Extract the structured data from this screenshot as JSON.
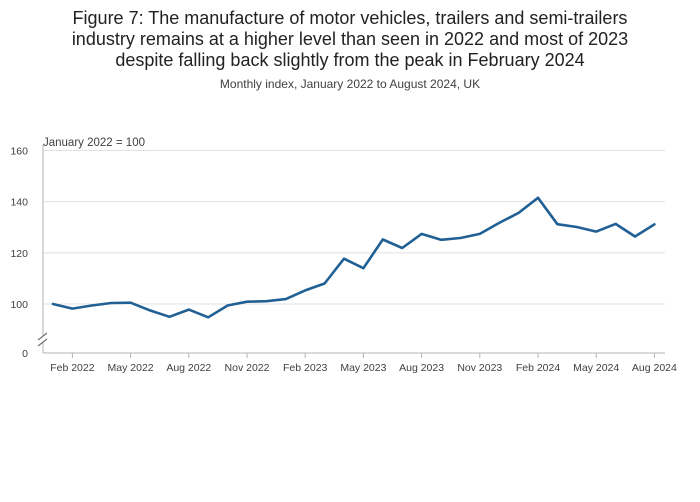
{
  "chart_data": {
    "type": "line",
    "title_lines": [
      "Figure 7: The manufacture of motor vehicles, trailers and semi-trailers",
      "industry remains at a higher level than seen in 2022 and most of 2023",
      "despite falling back slightly from the peak in February 2024"
    ],
    "subtitle": "Monthly index, January 2022 to August 2024, UK",
    "ylabel": "January 2022 = 100",
    "ylim": [
      0,
      160
    ],
    "axis_break": [
      0,
      100
    ],
    "yticks": [
      0,
      100,
      120,
      140,
      160
    ],
    "xtick_labels": [
      "Feb 2022",
      "May 2022",
      "Aug 2022",
      "Nov 2022",
      "Feb 2023",
      "May 2023",
      "Aug 2023",
      "Nov 2023",
      "Feb 2024",
      "May 2024",
      "Aug 2024"
    ],
    "xtick_indices": [
      1,
      4,
      7,
      10,
      13,
      16,
      19,
      22,
      25,
      28,
      31
    ],
    "series": [
      {
        "name": "Manufacture of motor vehicles, trailers and semi-trailers",
        "color": "#206095",
        "x": [
          "Jan 2022",
          "Feb 2022",
          "Mar 2022",
          "Apr 2022",
          "May 2022",
          "Jun 2022",
          "Jul 2022",
          "Aug 2022",
          "Sep 2022",
          "Oct 2022",
          "Nov 2022",
          "Dec 2022",
          "Jan 2023",
          "Feb 2023",
          "Mar 2023",
          "Apr 2023",
          "May 2023",
          "Jun 2023",
          "Jul 2023",
          "Aug 2023",
          "Sep 2023",
          "Oct 2023",
          "Nov 2023",
          "Dec 2023",
          "Jan 2024",
          "Feb 2024",
          "Mar 2024",
          "Apr 2024",
          "May 2024",
          "Jun 2024",
          "Jul 2024",
          "Aug 2024"
        ],
        "values": [
          100.0,
          98.2,
          99.4,
          100.4,
          100.5,
          97.5,
          95.0,
          97.8,
          94.8,
          99.4,
          100.9,
          101.1,
          101.9,
          105.3,
          108.0,
          117.7,
          114.0,
          125.2,
          121.9,
          127.4,
          125.1,
          125.8,
          127.4,
          131.7,
          135.6,
          141.5,
          131.2,
          130.1,
          128.3,
          131.3,
          126.4,
          131.1
        ]
      }
    ]
  }
}
